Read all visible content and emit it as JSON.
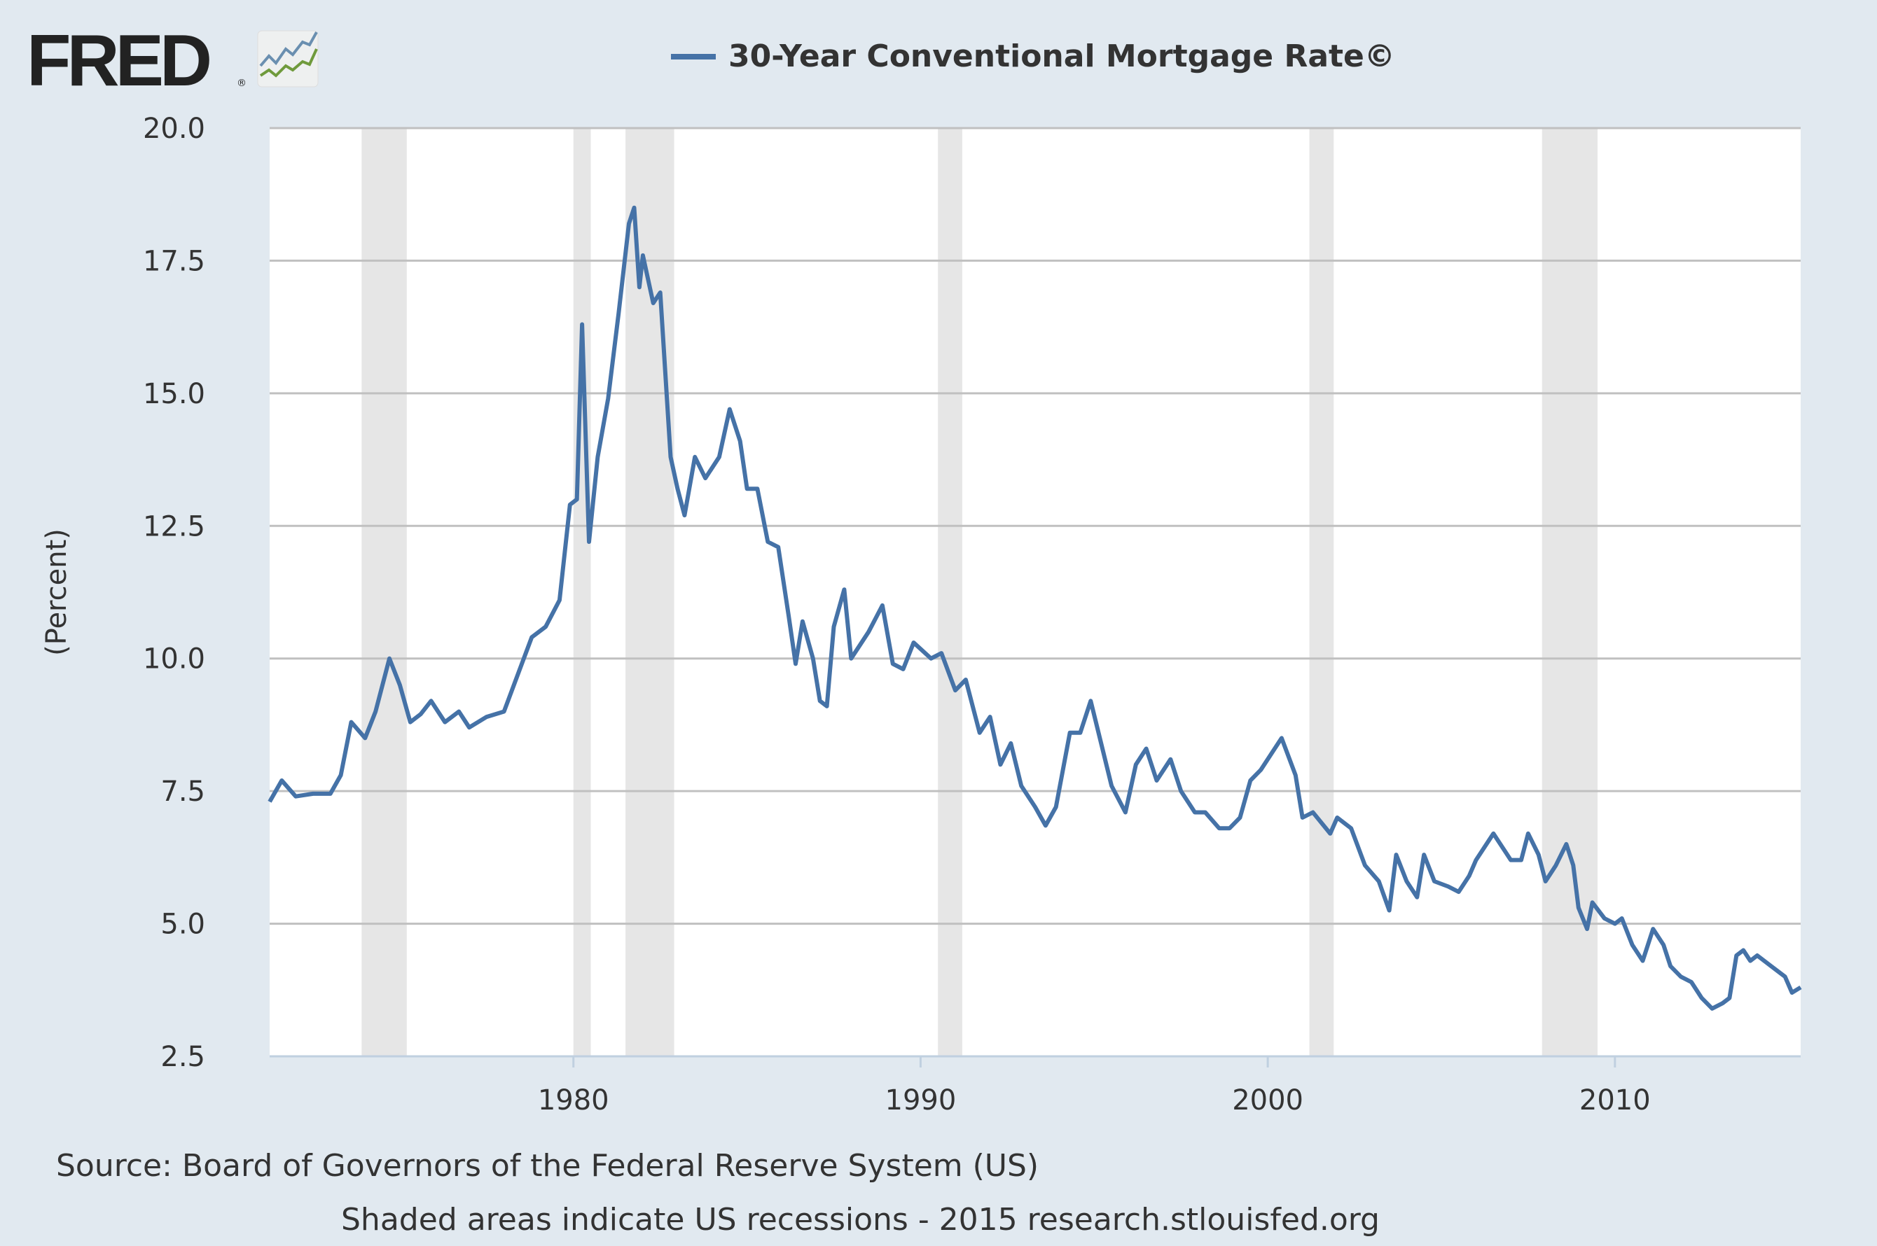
{
  "logo": {
    "text": "FRED",
    "mark": "®"
  },
  "colors": {
    "background": "#e1e9f0",
    "plot": "#ffffff",
    "line": "#4572a7",
    "recession": "#e6e6e6",
    "grid": "#c0c0c0",
    "text": "#333333"
  },
  "chart_data": {
    "type": "line",
    "title": "30-Year Conventional Mortgage Rate©",
    "legend": {
      "entries": [
        "30-Year Conventional Mortgage Rate©"
      ],
      "placement": "top-center"
    },
    "ylabel": "(Percent)",
    "xlabel": "",
    "ylim": [
      2.5,
      20.0
    ],
    "xlim": [
      1971.25,
      2015.35
    ],
    "yticks": [
      "2.5",
      "5.0",
      "7.5",
      "10.0",
      "12.5",
      "15.0",
      "17.5",
      "20.0"
    ],
    "ytick_values": [
      2.5,
      5,
      7.5,
      10,
      12.5,
      15,
      17.5,
      20
    ],
    "xticks": [
      "1980",
      "1990",
      "2000",
      "2010"
    ],
    "xtick_values": [
      1980,
      1990,
      2000,
      2010
    ],
    "grid": true,
    "recessions": [
      [
        1973.9,
        1975.2
      ],
      [
        1980.0,
        1980.5
      ],
      [
        1981.5,
        1982.9
      ],
      [
        1990.5,
        1991.2
      ],
      [
        2001.2,
        2001.9
      ],
      [
        2007.9,
        2009.5
      ]
    ],
    "series": [
      {
        "name": "30-Year Conventional Mortgage Rate©",
        "x": [
          1971.25,
          1971.6,
          1972.0,
          1972.5,
          1973.0,
          1973.3,
          1973.6,
          1974.0,
          1974.3,
          1974.7,
          1975.0,
          1975.3,
          1975.6,
          1975.9,
          1976.3,
          1976.7,
          1977.0,
          1977.5,
          1978.0,
          1978.4,
          1978.8,
          1979.2,
          1979.6,
          1979.9,
          1980.1,
          1980.25,
          1980.45,
          1980.7,
          1981.0,
          1981.3,
          1981.6,
          1981.75,
          1981.9,
          1982.0,
          1982.3,
          1982.5,
          1982.8,
          1983.0,
          1983.2,
          1983.5,
          1983.8,
          1984.2,
          1984.5,
          1984.8,
          1985.0,
          1985.3,
          1985.6,
          1985.9,
          1986.2,
          1986.4,
          1986.6,
          1986.9,
          1987.1,
          1987.3,
          1987.5,
          1987.8,
          1988.0,
          1988.5,
          1988.9,
          1989.2,
          1989.5,
          1989.8,
          1990.3,
          1990.6,
          1991.0,
          1991.3,
          1991.7,
          1992.0,
          1992.3,
          1992.6,
          1992.9,
          1993.3,
          1993.6,
          1993.9,
          1994.3,
          1994.6,
          1994.9,
          1995.2,
          1995.5,
          1995.9,
          1996.2,
          1996.5,
          1996.8,
          1997.2,
          1997.5,
          1997.9,
          1998.2,
          1998.6,
          1998.9,
          1999.2,
          1999.5,
          1999.8,
          2000.2,
          2000.4,
          2000.8,
          2001.0,
          2001.3,
          2001.8,
          2002.0,
          2002.4,
          2002.8,
          2003.2,
          2003.5,
          2003.7,
          2004.0,
          2004.3,
          2004.5,
          2004.8,
          2005.2,
          2005.5,
          2005.8,
          2006.0,
          2006.5,
          2006.8,
          2007.0,
          2007.3,
          2007.5,
          2007.8,
          2008.0,
          2008.3,
          2008.6,
          2008.8,
          2008.95,
          2009.2,
          2009.35,
          2009.7,
          2010.0,
          2010.2,
          2010.5,
          2010.8,
          2011.1,
          2011.4,
          2011.6,
          2011.9,
          2012.2,
          2012.5,
          2012.8,
          2013.1,
          2013.3,
          2013.5,
          2013.7,
          2013.9,
          2014.1,
          2014.5,
          2014.9,
          2015.1,
          2015.35
        ],
        "values": [
          7.3,
          7.7,
          7.4,
          7.45,
          7.45,
          7.8,
          8.8,
          8.5,
          9.0,
          10.0,
          9.5,
          8.8,
          8.95,
          9.2,
          8.8,
          9.0,
          8.7,
          8.9,
          9.0,
          9.7,
          10.4,
          10.6,
          11.1,
          12.9,
          13.0,
          16.3,
          12.2,
          13.8,
          14.9,
          16.5,
          18.2,
          18.5,
          17.0,
          17.6,
          16.7,
          16.9,
          13.8,
          13.2,
          12.7,
          13.8,
          13.4,
          13.8,
          14.7,
          14.1,
          13.2,
          13.2,
          12.2,
          12.1,
          10.8,
          9.9,
          10.7,
          10.0,
          9.2,
          9.1,
          10.6,
          11.3,
          10.0,
          10.5,
          11.0,
          9.9,
          9.8,
          10.3,
          10.0,
          10.1,
          9.4,
          9.6,
          8.6,
          8.9,
          8.0,
          8.4,
          7.6,
          7.2,
          6.85,
          7.2,
          8.6,
          8.6,
          9.2,
          8.4,
          7.6,
          7.1,
          8.0,
          8.3,
          7.7,
          8.1,
          7.5,
          7.1,
          7.1,
          6.8,
          6.8,
          7.0,
          7.7,
          7.9,
          8.3,
          8.5,
          7.8,
          7.0,
          7.1,
          6.7,
          7.0,
          6.8,
          6.1,
          5.8,
          5.25,
          6.3,
          5.8,
          5.5,
          6.3,
          5.8,
          5.7,
          5.6,
          5.9,
          6.2,
          6.7,
          6.4,
          6.2,
          6.2,
          6.7,
          6.3,
          5.8,
          6.1,
          6.5,
          6.1,
          5.3,
          4.9,
          5.4,
          5.1,
          5.0,
          5.1,
          4.6,
          4.3,
          4.9,
          4.6,
          4.2,
          4.0,
          3.9,
          3.6,
          3.4,
          3.5,
          3.6,
          4.4,
          4.5,
          4.3,
          4.4,
          4.2,
          4.0,
          3.7,
          3.8
        ]
      }
    ]
  },
  "footer": {
    "source": "Source: Board of Governors of the Federal Reserve System (US)",
    "note": "Shaded areas indicate US recessions - 2015 research.stlouisfed.org"
  }
}
